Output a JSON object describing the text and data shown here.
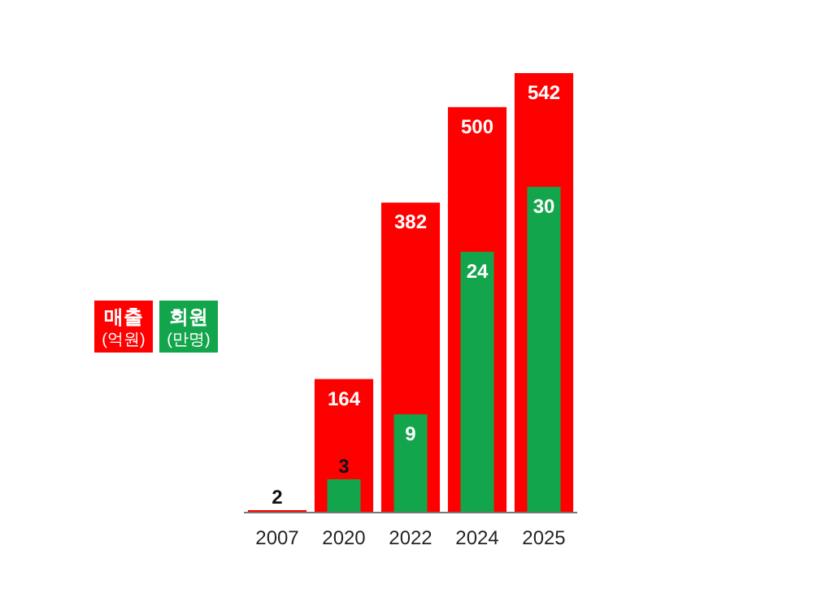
{
  "chart_data": {
    "type": "bar",
    "categories": [
      "2007",
      "2020",
      "2022",
      "2024",
      "2025"
    ],
    "series": [
      {
        "name": "매출 (억원)",
        "color": "#ff0000",
        "values": [
          2,
          164,
          382,
          500,
          542
        ]
      },
      {
        "name": "회원 (만명)",
        "color": "#13a54b",
        "values": [
          null,
          3,
          9,
          24,
          30
        ],
        "axis": "y2"
      }
    ],
    "data_labels": true,
    "legend": "left"
  }
}
